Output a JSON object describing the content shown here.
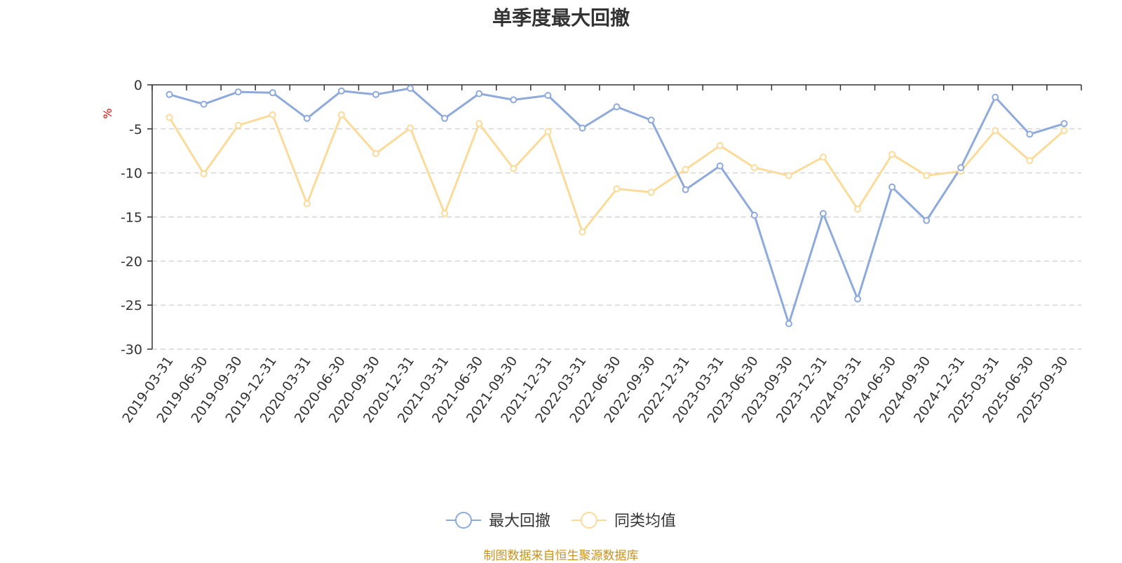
{
  "title": "单季度最大回撤",
  "source_note": "制图数据来自恒生聚源数据库",
  "colors": {
    "series_1": "#8eaadb",
    "series_2": "#fbdb9a",
    "axis": "#333333",
    "grid": "#cccccc",
    "unit": "#ff0000"
  },
  "chart_data": {
    "type": "line",
    "title": "单季度最大回撤",
    "ylabel": "%",
    "ylim": [
      -30,
      0
    ],
    "yticks": [
      0,
      -5,
      -10,
      -15,
      -20,
      -25,
      -30
    ],
    "grid": true,
    "legend_position": "bottom-center",
    "x": [
      "2019-03-31",
      "2019-06-30",
      "2019-09-30",
      "2019-12-31",
      "2020-03-31",
      "2020-06-30",
      "2020-09-30",
      "2020-12-31",
      "2021-03-31",
      "2021-06-30",
      "2021-09-30",
      "2021-12-31",
      "2022-03-31",
      "2022-06-30",
      "2022-09-30",
      "2022-12-31",
      "2023-03-31",
      "2023-06-30",
      "2023-09-30",
      "2023-12-31",
      "2024-03-31",
      "2024-06-30",
      "2024-09-30",
      "2024-12-31",
      "2025-03-31",
      "2025-06-30",
      "2025-09-30"
    ],
    "series": [
      {
        "name": "最大回撤",
        "values": [
          -1.1,
          -2.2,
          -0.8,
          -0.9,
          -3.8,
          -0.7,
          -1.1,
          -0.4,
          -3.8,
          -1.0,
          -1.7,
          -1.2,
          -4.9,
          -2.5,
          -4.0,
          -11.9,
          -9.2,
          -14.8,
          -27.1,
          -14.6,
          -24.3,
          -11.6,
          -15.4,
          -9.4,
          -1.4,
          -5.6,
          -4.4
        ]
      },
      {
        "name": "同类均值",
        "values": [
          -3.7,
          -10.1,
          -4.6,
          -3.4,
          -13.5,
          -3.4,
          -7.8,
          -4.9,
          -14.6,
          -4.4,
          -9.5,
          -5.3,
          -16.7,
          -11.8,
          -12.2,
          -9.6,
          -6.9,
          -9.4,
          -10.3,
          -8.2,
          -14.1,
          -7.9,
          -10.3,
          -9.8,
          -5.2,
          -8.6,
          -5.2
        ]
      }
    ]
  }
}
